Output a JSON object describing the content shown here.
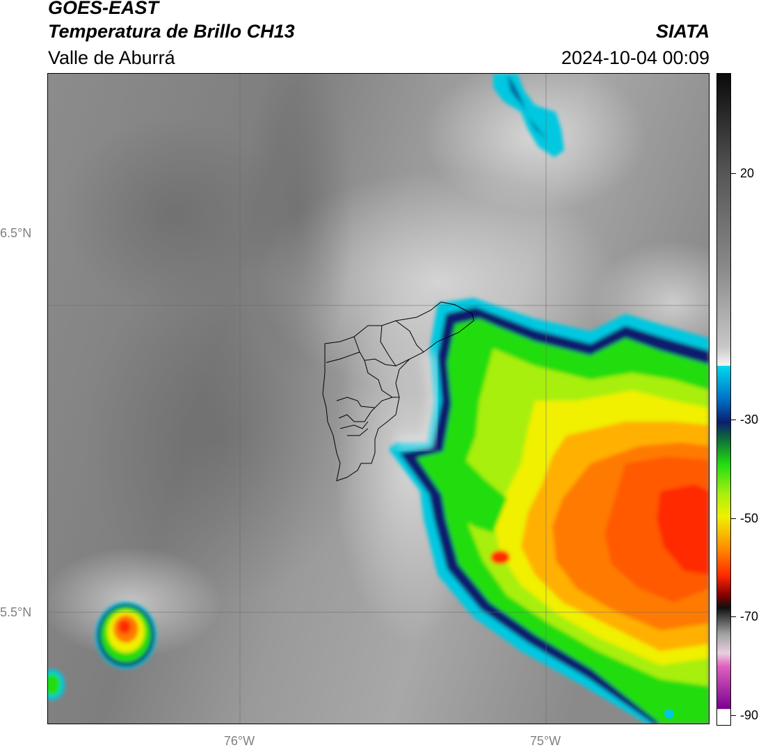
{
  "header": {
    "satellite": "GOES-EAST",
    "product": "Temperatura de Brillo CH13",
    "region": "Valle de Aburrá",
    "agency": "SIATA",
    "datetime": "2024-10-04 00:09"
  },
  "map": {
    "lat_labels": [
      "6.5°N",
      "5.5°N"
    ],
    "lon_labels": [
      "76°W",
      "75°W"
    ],
    "colors": {
      "background_gray": "#8a8a8a",
      "cold_cyan": "#00c8e0",
      "deep_blue": "#0a1e6e",
      "green": "#22dd11",
      "yellow": "#f0f000",
      "orange": "#ff7a00",
      "red": "#ff2a00"
    }
  },
  "colorbar": {
    "ticks": [
      "20",
      "-30",
      "-50",
      "-70",
      "-90"
    ]
  }
}
